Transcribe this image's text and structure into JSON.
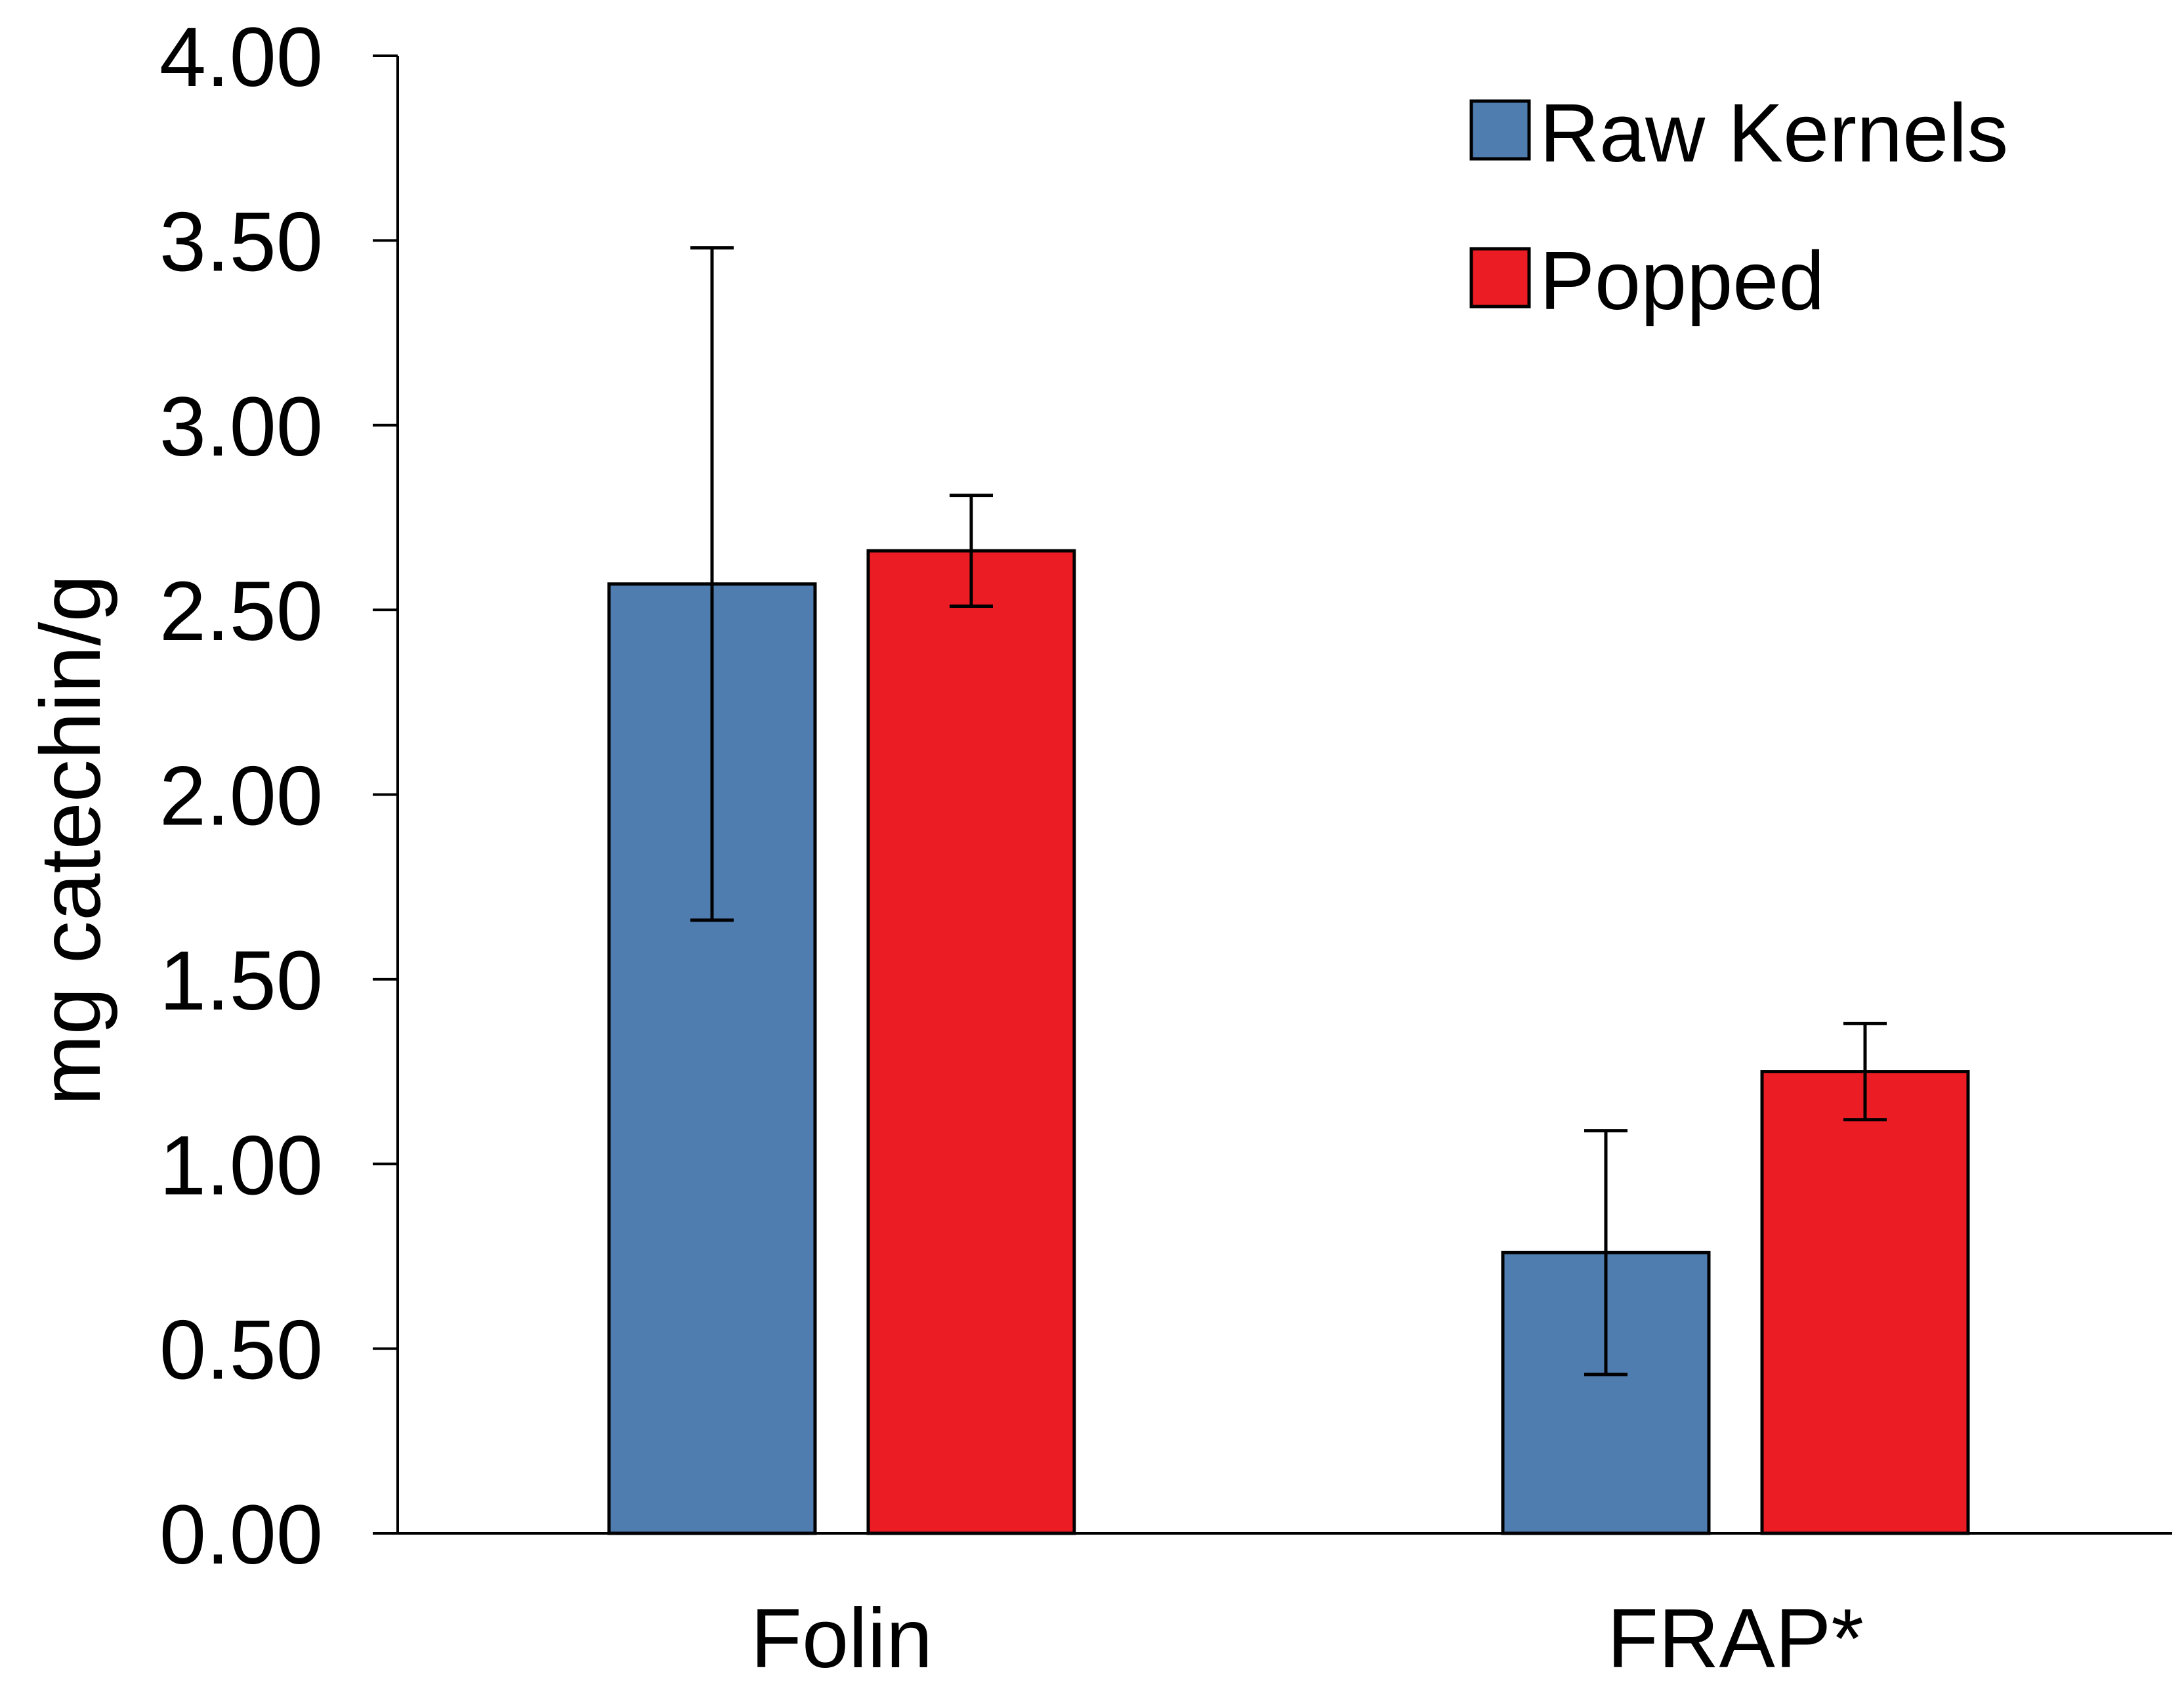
{
  "chart_data": {
    "type": "bar",
    "title": "",
    "xlabel": "",
    "ylabel": "mg catechin/g",
    "ylim": [
      0,
      4
    ],
    "yticks": [
      "0.00",
      "0.50",
      "1.00",
      "1.50",
      "2.00",
      "2.50",
      "3.00",
      "3.50",
      "4.00"
    ],
    "categories": [
      "Folin",
      "FRAP*"
    ],
    "series": [
      {
        "name": "Raw Kernels",
        "color": "#4f7db0",
        "values": [
          2.57,
          0.76
        ],
        "errors": [
          0.91,
          0.33
        ]
      },
      {
        "name": "Popped",
        "color": "#ec1c24",
        "values": [
          2.66,
          1.25
        ],
        "errors": [
          0.15,
          0.13
        ]
      }
    ],
    "legend_position": "top-right",
    "grid": false
  }
}
